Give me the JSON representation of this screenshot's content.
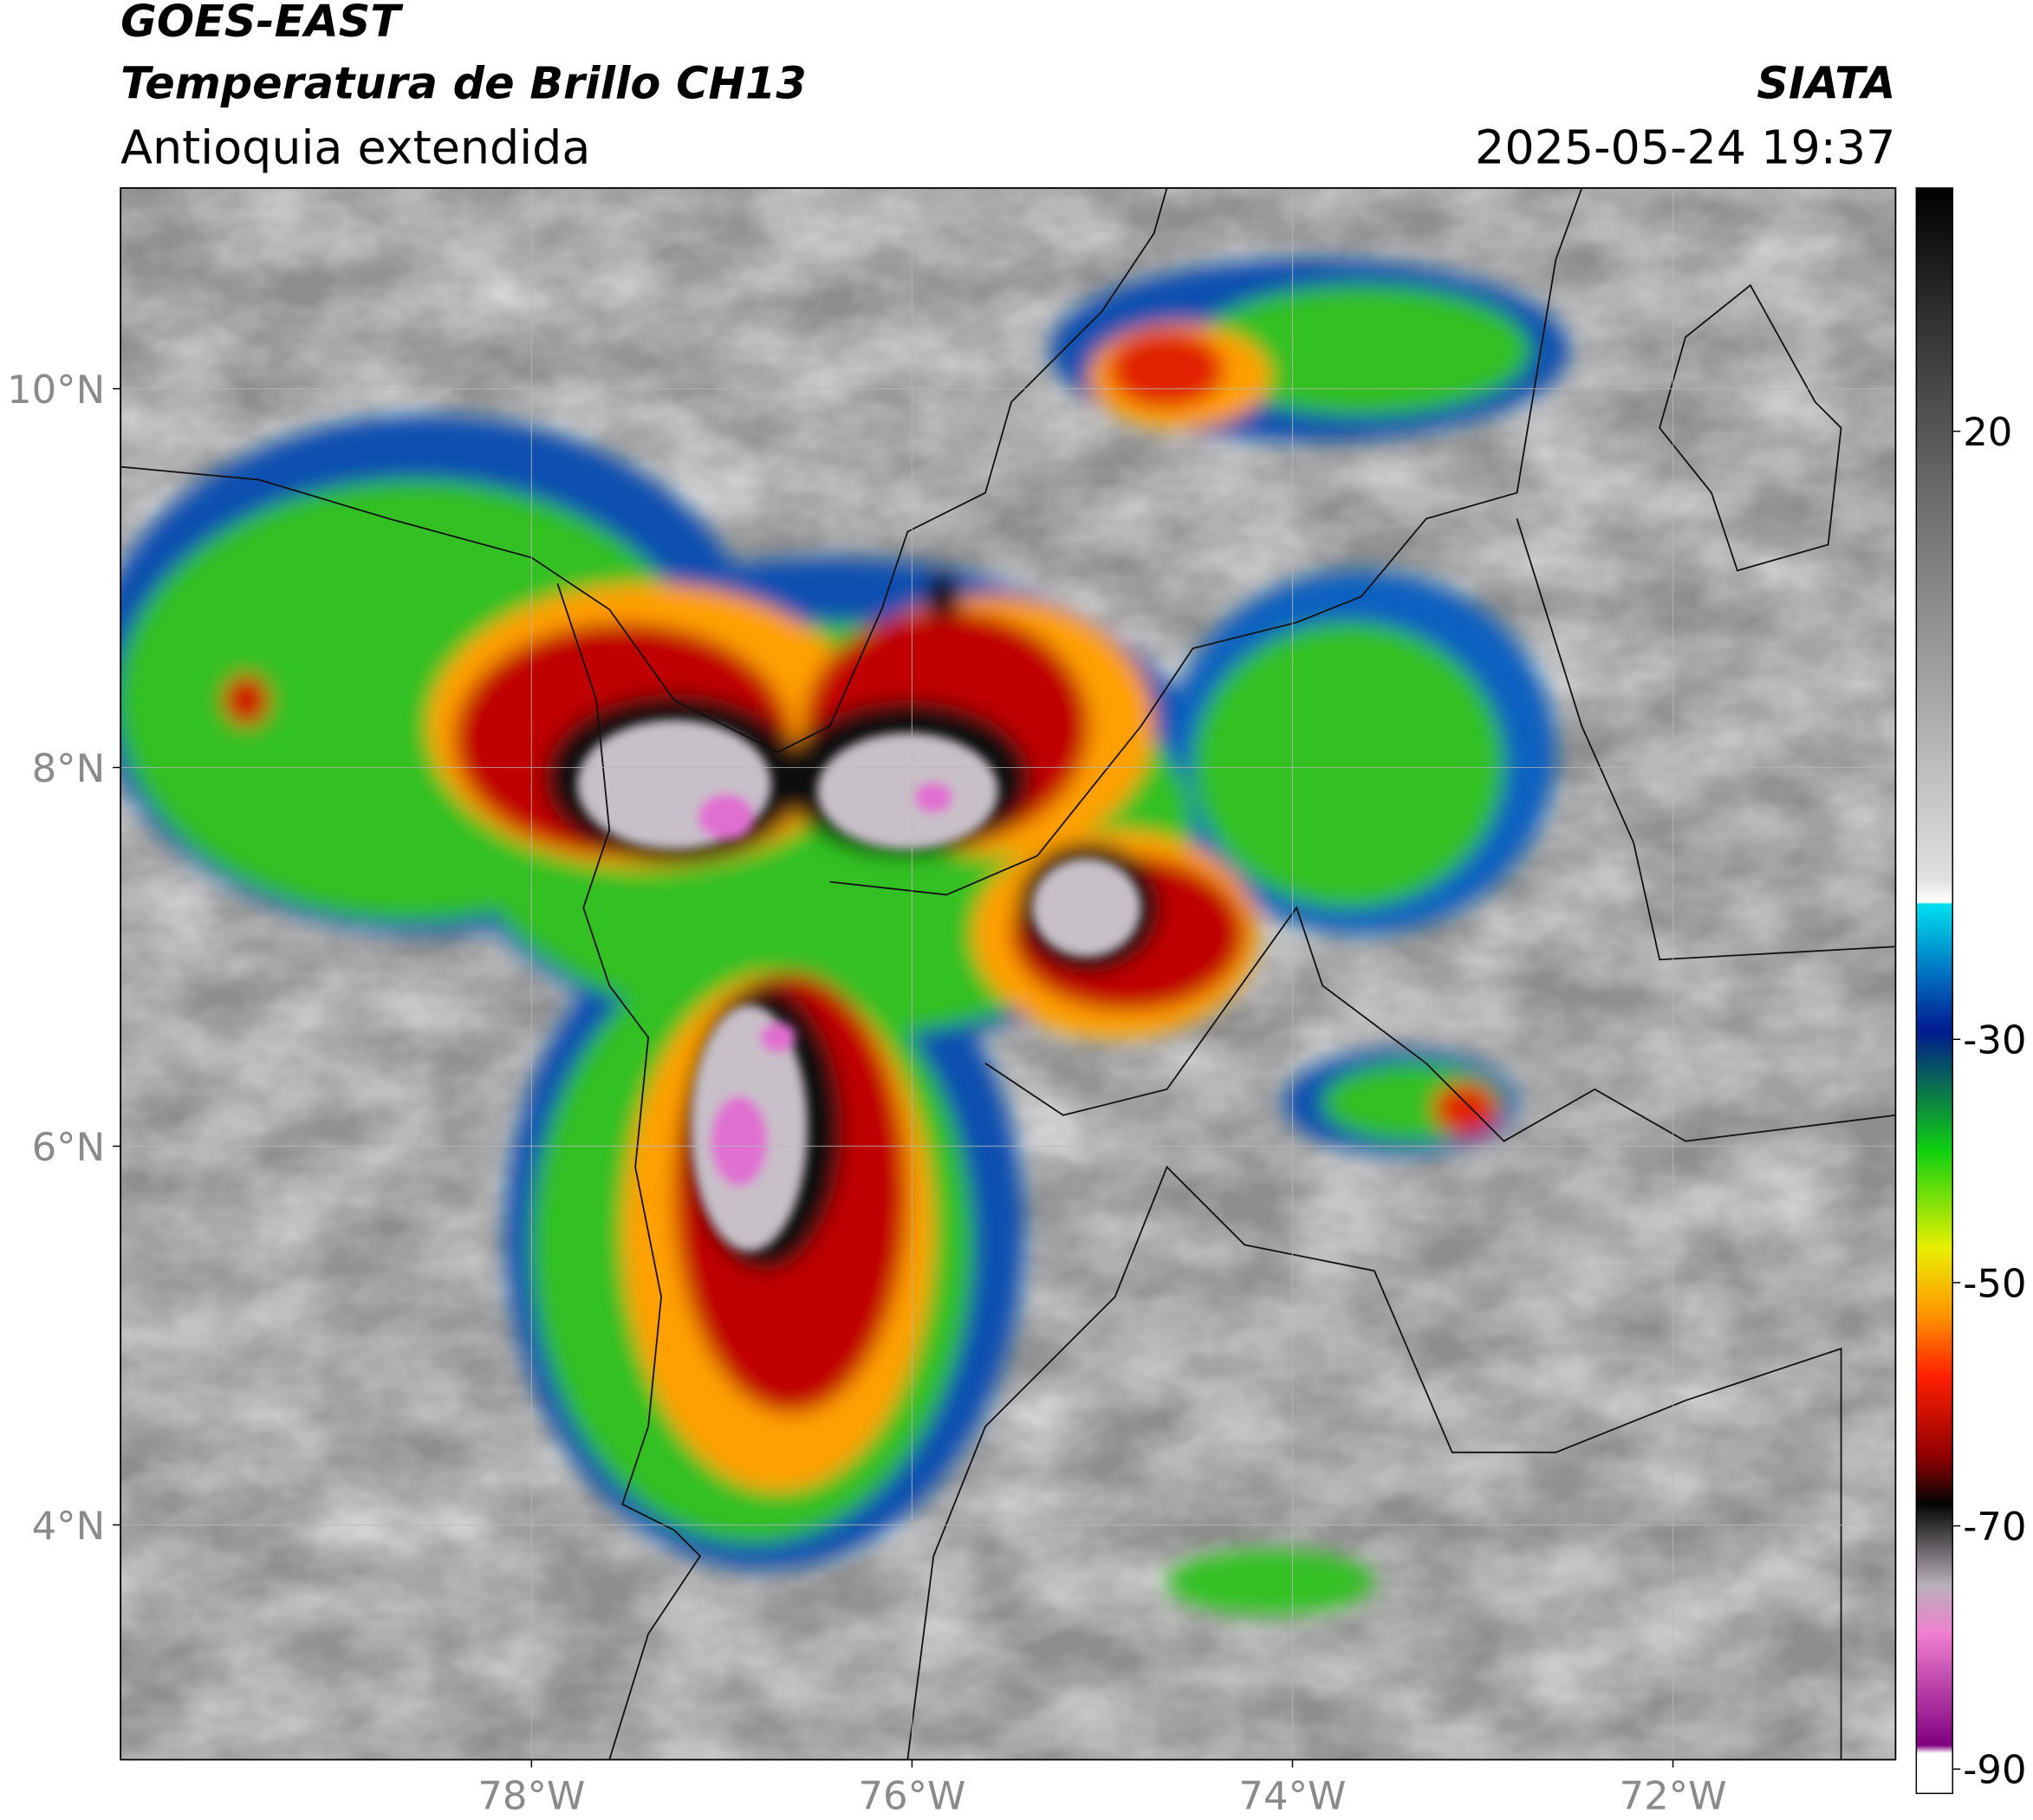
{
  "chart_data": {
    "type": "map",
    "title": "GOES-EAST",
    "subtitle": "Temperatura de Brillo CH13",
    "region": "Antioquia extendida",
    "source": "SIATA",
    "datetime": "2025-05-24 19:37",
    "xlim": [
      -80.16,
      -70.83
    ],
    "ylim": [
      2.76,
      11.06
    ],
    "xticks": [
      {
        "value": -78,
        "label": "78°W"
      },
      {
        "value": -76,
        "label": "76°W"
      },
      {
        "value": -74,
        "label": "74°W"
      },
      {
        "value": -72,
        "label": "72°W"
      }
    ],
    "yticks": [
      {
        "value": 4,
        "label": "4°N"
      },
      {
        "value": 6,
        "label": "6°N"
      },
      {
        "value": 8,
        "label": "8°N"
      },
      {
        "value": 10,
        "label": "10°N"
      }
    ],
    "grid": true,
    "colorbar": {
      "lim": [
        -92,
        40
      ],
      "ticks": [
        20,
        -30,
        -50,
        -70,
        -90
      ]
    }
  }
}
